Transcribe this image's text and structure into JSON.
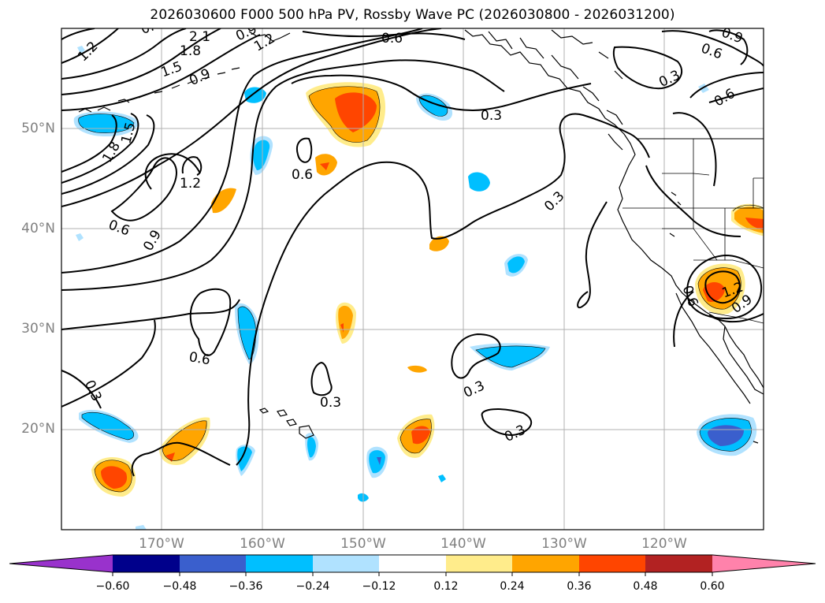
{
  "title": "2026030600 F000 500 hPa PV, Rossby Wave PC (2026030800 - 2026031200)",
  "latitude_labels": [
    "50°N",
    "40°N",
    "30°N",
    "20°N"
  ],
  "longitude_labels": [
    "170°W",
    "160°W",
    "150°W",
    "140°W",
    "130°W",
    "120°W"
  ],
  "colorbar": {
    "ticks": [
      "−0.60",
      "−0.48",
      "−0.36",
      "−0.24",
      "−0.12",
      "0.12",
      "0.24",
      "0.36",
      "0.48",
      "0.60"
    ],
    "colors": [
      "#9932cc",
      "#00008b",
      "#3a5fcd",
      "#00bfff",
      "#b0e2ff",
      "#ffffff",
      "#ffec8b",
      "#ffa500",
      "#ff4500",
      "#b22222",
      "#ff82ab"
    ]
  },
  "contour_labels": [
    "1.2",
    "2.1",
    "1.8",
    "1.5",
    "0.9",
    "1.2",
    "0.6",
    "0.9",
    "0.6",
    "1.8",
    "1.5",
    "1.2",
    "0.6",
    "0.9",
    "0.6",
    "0.3",
    "0.3",
    "0.6",
    "0.3",
    "0.3",
    "0.3",
    "0.3",
    "0.6",
    "0.3",
    "1.2",
    "0.6",
    "0.9",
    "0.6",
    "0.9"
  ],
  "colors": {
    "grid": "#b0b0b0",
    "contour": "#000000",
    "coast": "#000000",
    "axis_label": "#808080"
  }
}
